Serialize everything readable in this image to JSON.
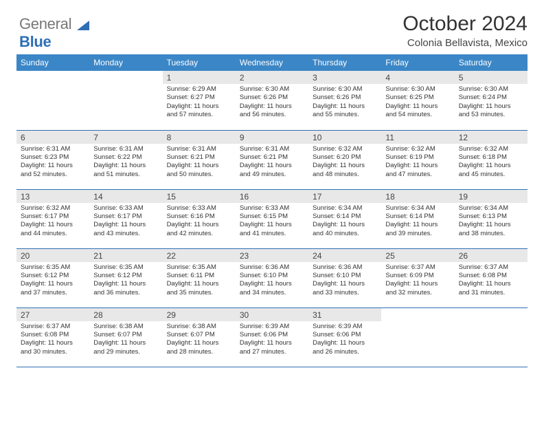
{
  "logo": {
    "text_gray": "General",
    "text_blue": "Blue",
    "triangle_color": "#2d6fb5"
  },
  "header": {
    "title": "October 2024",
    "subtitle": "Colonia Bellavista, Mexico"
  },
  "colors": {
    "header_bg": "#3b86c6",
    "header_text": "#ffffff",
    "daynum_bg": "#e8e8e8",
    "row_border": "#2d6fb5",
    "body_text": "#333333"
  },
  "typography": {
    "title_fontsize": 30,
    "subtitle_fontsize": 15,
    "header_fontsize": 12,
    "daynum_fontsize": 12,
    "cell_fontsize": 9.5,
    "font_family": "Arial"
  },
  "weekdays": [
    "Sunday",
    "Monday",
    "Tuesday",
    "Wednesday",
    "Thursday",
    "Friday",
    "Saturday"
  ],
  "weeks": [
    [
      {
        "empty": true
      },
      {
        "empty": true
      },
      {
        "n": "1",
        "sr": "Sunrise: 6:29 AM",
        "ss": "Sunset: 6:27 PM",
        "dl": "Daylight: 11 hours and 57 minutes."
      },
      {
        "n": "2",
        "sr": "Sunrise: 6:30 AM",
        "ss": "Sunset: 6:26 PM",
        "dl": "Daylight: 11 hours and 56 minutes."
      },
      {
        "n": "3",
        "sr": "Sunrise: 6:30 AM",
        "ss": "Sunset: 6:26 PM",
        "dl": "Daylight: 11 hours and 55 minutes."
      },
      {
        "n": "4",
        "sr": "Sunrise: 6:30 AM",
        "ss": "Sunset: 6:25 PM",
        "dl": "Daylight: 11 hours and 54 minutes."
      },
      {
        "n": "5",
        "sr": "Sunrise: 6:30 AM",
        "ss": "Sunset: 6:24 PM",
        "dl": "Daylight: 11 hours and 53 minutes."
      }
    ],
    [
      {
        "n": "6",
        "sr": "Sunrise: 6:31 AM",
        "ss": "Sunset: 6:23 PM",
        "dl": "Daylight: 11 hours and 52 minutes."
      },
      {
        "n": "7",
        "sr": "Sunrise: 6:31 AM",
        "ss": "Sunset: 6:22 PM",
        "dl": "Daylight: 11 hours and 51 minutes."
      },
      {
        "n": "8",
        "sr": "Sunrise: 6:31 AM",
        "ss": "Sunset: 6:21 PM",
        "dl": "Daylight: 11 hours and 50 minutes."
      },
      {
        "n": "9",
        "sr": "Sunrise: 6:31 AM",
        "ss": "Sunset: 6:21 PM",
        "dl": "Daylight: 11 hours and 49 minutes."
      },
      {
        "n": "10",
        "sr": "Sunrise: 6:32 AM",
        "ss": "Sunset: 6:20 PM",
        "dl": "Daylight: 11 hours and 48 minutes."
      },
      {
        "n": "11",
        "sr": "Sunrise: 6:32 AM",
        "ss": "Sunset: 6:19 PM",
        "dl": "Daylight: 11 hours and 47 minutes."
      },
      {
        "n": "12",
        "sr": "Sunrise: 6:32 AM",
        "ss": "Sunset: 6:18 PM",
        "dl": "Daylight: 11 hours and 45 minutes."
      }
    ],
    [
      {
        "n": "13",
        "sr": "Sunrise: 6:32 AM",
        "ss": "Sunset: 6:17 PM",
        "dl": "Daylight: 11 hours and 44 minutes."
      },
      {
        "n": "14",
        "sr": "Sunrise: 6:33 AM",
        "ss": "Sunset: 6:17 PM",
        "dl": "Daylight: 11 hours and 43 minutes."
      },
      {
        "n": "15",
        "sr": "Sunrise: 6:33 AM",
        "ss": "Sunset: 6:16 PM",
        "dl": "Daylight: 11 hours and 42 minutes."
      },
      {
        "n": "16",
        "sr": "Sunrise: 6:33 AM",
        "ss": "Sunset: 6:15 PM",
        "dl": "Daylight: 11 hours and 41 minutes."
      },
      {
        "n": "17",
        "sr": "Sunrise: 6:34 AM",
        "ss": "Sunset: 6:14 PM",
        "dl": "Daylight: 11 hours and 40 minutes."
      },
      {
        "n": "18",
        "sr": "Sunrise: 6:34 AM",
        "ss": "Sunset: 6:14 PM",
        "dl": "Daylight: 11 hours and 39 minutes."
      },
      {
        "n": "19",
        "sr": "Sunrise: 6:34 AM",
        "ss": "Sunset: 6:13 PM",
        "dl": "Daylight: 11 hours and 38 minutes."
      }
    ],
    [
      {
        "n": "20",
        "sr": "Sunrise: 6:35 AM",
        "ss": "Sunset: 6:12 PM",
        "dl": "Daylight: 11 hours and 37 minutes."
      },
      {
        "n": "21",
        "sr": "Sunrise: 6:35 AM",
        "ss": "Sunset: 6:12 PM",
        "dl": "Daylight: 11 hours and 36 minutes."
      },
      {
        "n": "22",
        "sr": "Sunrise: 6:35 AM",
        "ss": "Sunset: 6:11 PM",
        "dl": "Daylight: 11 hours and 35 minutes."
      },
      {
        "n": "23",
        "sr": "Sunrise: 6:36 AM",
        "ss": "Sunset: 6:10 PM",
        "dl": "Daylight: 11 hours and 34 minutes."
      },
      {
        "n": "24",
        "sr": "Sunrise: 6:36 AM",
        "ss": "Sunset: 6:10 PM",
        "dl": "Daylight: 11 hours and 33 minutes."
      },
      {
        "n": "25",
        "sr": "Sunrise: 6:37 AM",
        "ss": "Sunset: 6:09 PM",
        "dl": "Daylight: 11 hours and 32 minutes."
      },
      {
        "n": "26",
        "sr": "Sunrise: 6:37 AM",
        "ss": "Sunset: 6:08 PM",
        "dl": "Daylight: 11 hours and 31 minutes."
      }
    ],
    [
      {
        "n": "27",
        "sr": "Sunrise: 6:37 AM",
        "ss": "Sunset: 6:08 PM",
        "dl": "Daylight: 11 hours and 30 minutes."
      },
      {
        "n": "28",
        "sr": "Sunrise: 6:38 AM",
        "ss": "Sunset: 6:07 PM",
        "dl": "Daylight: 11 hours and 29 minutes."
      },
      {
        "n": "29",
        "sr": "Sunrise: 6:38 AM",
        "ss": "Sunset: 6:07 PM",
        "dl": "Daylight: 11 hours and 28 minutes."
      },
      {
        "n": "30",
        "sr": "Sunrise: 6:39 AM",
        "ss": "Sunset: 6:06 PM",
        "dl": "Daylight: 11 hours and 27 minutes."
      },
      {
        "n": "31",
        "sr": "Sunrise: 6:39 AM",
        "ss": "Sunset: 6:06 PM",
        "dl": "Daylight: 11 hours and 26 minutes."
      },
      {
        "empty": true
      },
      {
        "empty": true
      }
    ]
  ]
}
